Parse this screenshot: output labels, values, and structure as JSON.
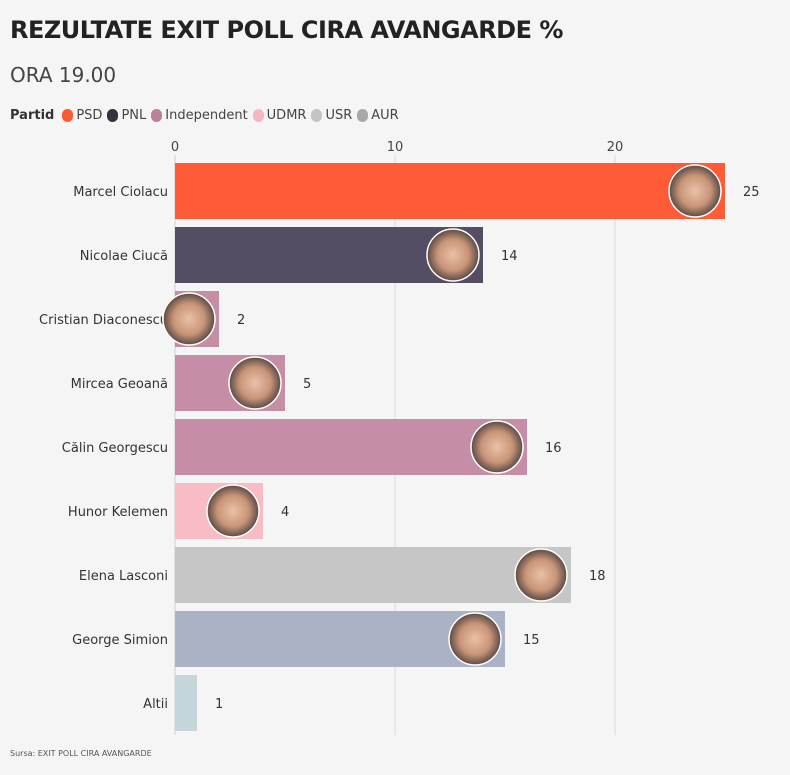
{
  "chart_data": {
    "type": "bar",
    "orientation": "horizontal",
    "title": "REZULTATE EXIT POLL CIRA AVANGARDE %",
    "subtitle": "ORA 19.00",
    "legend": {
      "title": "Partid",
      "placement": "top-left",
      "items": [
        {
          "label": "PSD",
          "color": "#fc5a34"
        },
        {
          "label": "PNL",
          "color": "#33323f"
        },
        {
          "label": "Independent",
          "color": "#b9819a"
        },
        {
          "label": "UDMR",
          "color": "#f5b8c0"
        },
        {
          "label": "USR",
          "color": "#c4c4c4"
        },
        {
          "label": "AUR",
          "color": "#a8a8ab"
        }
      ]
    },
    "xlim": [
      0,
      25
    ],
    "xticks": [
      "0",
      "10",
      "20"
    ],
    "xtick_values": [
      0,
      10,
      20
    ],
    "grid": true,
    "categories": [
      "Marcel Ciolacu",
      "Nicolae Ciucă",
      "Cristian Diaconescu",
      "Mircea Geoană",
      "Călin Georgescu",
      "Hunor Kelemen",
      "Elena Lasconi",
      "George Simion",
      "Altii"
    ],
    "values": [
      25,
      14,
      2,
      5,
      16,
      4,
      18,
      15,
      1
    ],
    "labels": [
      "25",
      "14",
      "2",
      "5",
      "16",
      "4",
      "18",
      "15",
      "1"
    ],
    "bar_colors": [
      "#fe5b36",
      "#544d63",
      "#c68da6",
      "#c68da6",
      "#c68da6",
      "#f7bcc4",
      "#c6c6c6",
      "#acb2c5",
      "#c4d5dc"
    ],
    "has_photo": [
      true,
      true,
      true,
      true,
      true,
      true,
      true,
      true,
      false
    ],
    "source": "Sursa: EXIT POLL CIRA AVANGARDE"
  }
}
